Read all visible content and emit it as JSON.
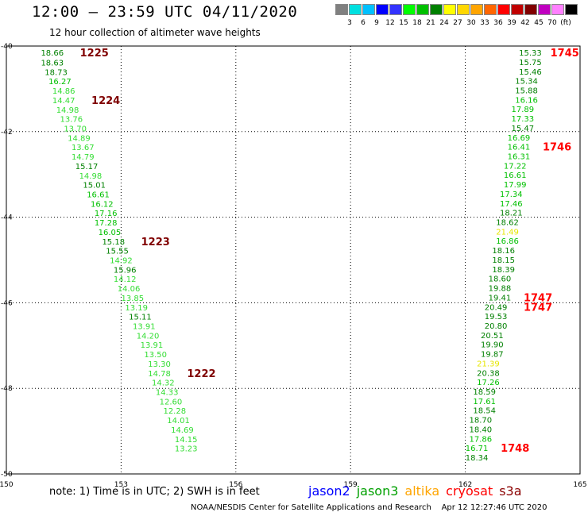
{
  "header": {
    "title": "12:00 – 23:59 UTC 04/11/2020",
    "subtitle": "12 hour collection of altimeter wave heights"
  },
  "colorbar": {
    "colors": [
      "#808080",
      "#00e0e0",
      "#00c0ff",
      "#0000ff",
      "#3333ff",
      "#00ff00",
      "#00c000",
      "#008000",
      "#ffff00",
      "#ffd700",
      "#ffa500",
      "#ff6600",
      "#ff0000",
      "#c00000",
      "#800000",
      "#c000c0",
      "#ff80ff",
      "#000000"
    ],
    "labels": [
      "3",
      "6",
      "9",
      "12",
      "15",
      "18",
      "21",
      "24",
      "27",
      "30",
      "33",
      "36",
      "39",
      "42",
      "45",
      "70",
      "(ft)"
    ]
  },
  "chart_data": {
    "type": "scatter",
    "x_ticks": [
      "150",
      "153",
      "156",
      "159",
      "162",
      "165"
    ],
    "y_ticks": [
      "-40",
      "-42",
      "-44",
      "-46",
      "-48",
      "-50"
    ],
    "xlim": [
      150,
      165
    ],
    "ylim": [
      -50,
      -40
    ],
    "grid": true,
    "tracks": [
      {
        "satellite": "jason3",
        "points": [
          {
            "lon": 151.2,
            "lat": -40.15,
            "value": "18.66",
            "color": "#008000"
          },
          {
            "lon": 151.2,
            "lat": -40.38,
            "value": "18.63",
            "color": "#008000"
          },
          {
            "lon": 151.3,
            "lat": -40.6,
            "value": "18.73",
            "color": "#008000"
          },
          {
            "lon": 151.4,
            "lat": -40.82,
            "value": "16.27",
            "color": "#00c000"
          },
          {
            "lon": 151.5,
            "lat": -41.04,
            "value": "14.86",
            "color": "#33dd33"
          },
          {
            "lon": 151.5,
            "lat": -41.26,
            "value": "14.47",
            "color": "#33dd33"
          },
          {
            "lon": 151.6,
            "lat": -41.48,
            "value": "14.98",
            "color": "#33dd33"
          },
          {
            "lon": 151.7,
            "lat": -41.7,
            "value": "13.76",
            "color": "#33dd33"
          },
          {
            "lon": 151.8,
            "lat": -41.92,
            "value": "13.70",
            "color": "#33dd33"
          },
          {
            "lon": 151.9,
            "lat": -42.14,
            "value": "14.89",
            "color": "#33dd33"
          },
          {
            "lon": 152.0,
            "lat": -42.36,
            "value": "13.67",
            "color": "#33dd33"
          },
          {
            "lon": 152.0,
            "lat": -42.58,
            "value": "14.79",
            "color": "#33dd33"
          },
          {
            "lon": 152.1,
            "lat": -42.8,
            "value": "15.17",
            "color": "#008000"
          },
          {
            "lon": 152.2,
            "lat": -43.02,
            "value": "14.98",
            "color": "#33dd33"
          },
          {
            "lon": 152.3,
            "lat": -43.24,
            "value": "15.01",
            "color": "#008000"
          },
          {
            "lon": 152.4,
            "lat": -43.46,
            "value": "16.61",
            "color": "#00c000"
          },
          {
            "lon": 152.5,
            "lat": -43.68,
            "value": "16.12",
            "color": "#00c000"
          },
          {
            "lon": 152.6,
            "lat": -43.9,
            "value": "17.16",
            "color": "#00c000"
          },
          {
            "lon": 152.6,
            "lat": -44.12,
            "value": "17.28",
            "color": "#00c000"
          },
          {
            "lon": 152.7,
            "lat": -44.34,
            "value": "16.05",
            "color": "#00c000"
          },
          {
            "lon": 152.8,
            "lat": -44.56,
            "value": "15.18",
            "color": "#008000"
          },
          {
            "lon": 152.9,
            "lat": -44.78,
            "value": "15.55",
            "color": "#008000"
          },
          {
            "lon": 153.0,
            "lat": -45.0,
            "value": "14.92",
            "color": "#33dd33"
          },
          {
            "lon": 153.1,
            "lat": -45.22,
            "value": "15.96",
            "color": "#008000"
          },
          {
            "lon": 153.1,
            "lat": -45.44,
            "value": "14.12",
            "color": "#33dd33"
          },
          {
            "lon": 153.2,
            "lat": -45.66,
            "value": "14.06",
            "color": "#33dd33"
          },
          {
            "lon": 153.3,
            "lat": -45.88,
            "value": "13.85",
            "color": "#33dd33"
          },
          {
            "lon": 153.4,
            "lat": -46.1,
            "value": "13.19",
            "color": "#33dd33"
          },
          {
            "lon": 153.5,
            "lat": -46.32,
            "value": "15.11",
            "color": "#008000"
          },
          {
            "lon": 153.6,
            "lat": -46.54,
            "value": "13.91",
            "color": "#33dd33"
          },
          {
            "lon": 153.7,
            "lat": -46.76,
            "value": "14.20",
            "color": "#33dd33"
          },
          {
            "lon": 153.8,
            "lat": -46.98,
            "value": "13.91",
            "color": "#33dd33"
          },
          {
            "lon": 153.9,
            "lat": -47.2,
            "value": "13.50",
            "color": "#33dd33"
          },
          {
            "lon": 154.0,
            "lat": -47.42,
            "value": "13.30",
            "color": "#33dd33"
          },
          {
            "lon": 154.0,
            "lat": -47.64,
            "value": "14.78",
            "color": "#33dd33"
          },
          {
            "lon": 154.1,
            "lat": -47.86,
            "value": "14.32",
            "color": "#33dd33"
          },
          {
            "lon": 154.2,
            "lat": -48.08,
            "value": "14.33",
            "color": "#33dd33"
          },
          {
            "lon": 154.3,
            "lat": -48.3,
            "value": "12.60",
            "color": "#33dd33"
          },
          {
            "lon": 154.4,
            "lat": -48.52,
            "value": "12.28",
            "color": "#33dd33"
          },
          {
            "lon": 154.5,
            "lat": -48.74,
            "value": "14.01",
            "color": "#33dd33"
          },
          {
            "lon": 154.6,
            "lat": -48.96,
            "value": "14.69",
            "color": "#33dd33"
          },
          {
            "lon": 154.7,
            "lat": -49.18,
            "value": "14.15",
            "color": "#33dd33"
          },
          {
            "lon": 154.7,
            "lat": -49.4,
            "value": "13.23",
            "color": "#33dd33"
          }
        ]
      },
      {
        "satellite": "jason3",
        "points": [
          {
            "lon": 163.7,
            "lat": -40.15,
            "value": "15.33",
            "color": "#008000"
          },
          {
            "lon": 163.7,
            "lat": -40.37,
            "value": "15.75",
            "color": "#008000"
          },
          {
            "lon": 163.7,
            "lat": -40.59,
            "value": "15.46",
            "color": "#008000"
          },
          {
            "lon": 163.6,
            "lat": -40.81,
            "value": "15.34",
            "color": "#008000"
          },
          {
            "lon": 163.6,
            "lat": -41.03,
            "value": "15.88",
            "color": "#008000"
          },
          {
            "lon": 163.6,
            "lat": -41.25,
            "value": "16.16",
            "color": "#00c000"
          },
          {
            "lon": 163.5,
            "lat": -41.47,
            "value": "17.89",
            "color": "#00c000"
          },
          {
            "lon": 163.5,
            "lat": -41.69,
            "value": "17.33",
            "color": "#00c000"
          },
          {
            "lon": 163.5,
            "lat": -41.91,
            "value": "15.47",
            "color": "#008000"
          },
          {
            "lon": 163.4,
            "lat": -42.13,
            "value": "16.69",
            "color": "#00c000"
          },
          {
            "lon": 163.4,
            "lat": -42.35,
            "value": "16.41",
            "color": "#00c000"
          },
          {
            "lon": 163.4,
            "lat": -42.57,
            "value": "16.31",
            "color": "#00c000"
          },
          {
            "lon": 163.3,
            "lat": -42.79,
            "value": "17.22",
            "color": "#00c000"
          },
          {
            "lon": 163.3,
            "lat": -43.01,
            "value": "16.61",
            "color": "#00c000"
          },
          {
            "lon": 163.3,
            "lat": -43.23,
            "value": "17.99",
            "color": "#00c000"
          },
          {
            "lon": 163.2,
            "lat": -43.45,
            "value": "17.34",
            "color": "#00c000"
          },
          {
            "lon": 163.2,
            "lat": -43.67,
            "value": "17.46",
            "color": "#00c000"
          },
          {
            "lon": 163.2,
            "lat": -43.89,
            "value": "18.21",
            "color": "#008000"
          },
          {
            "lon": 163.1,
            "lat": -44.11,
            "value": "18.62",
            "color": "#008000"
          },
          {
            "lon": 163.1,
            "lat": -44.33,
            "value": "21.49",
            "color": "#e6e600"
          },
          {
            "lon": 163.1,
            "lat": -44.55,
            "value": "16.86",
            "color": "#00c000"
          },
          {
            "lon": 163.0,
            "lat": -44.77,
            "value": "18.16",
            "color": "#008000"
          },
          {
            "lon": 163.0,
            "lat": -44.99,
            "value": "18.15",
            "color": "#008000"
          },
          {
            "lon": 163.0,
            "lat": -45.21,
            "value": "18.39",
            "color": "#008000"
          },
          {
            "lon": 162.9,
            "lat": -45.43,
            "value": "18.60",
            "color": "#008000"
          },
          {
            "lon": 162.9,
            "lat": -45.65,
            "value": "19.88",
            "color": "#008000"
          },
          {
            "lon": 162.9,
            "lat": -45.87,
            "value": "19.41",
            "color": "#008000"
          },
          {
            "lon": 162.8,
            "lat": -46.09,
            "value": "20.49",
            "color": "#008000"
          },
          {
            "lon": 162.8,
            "lat": -46.31,
            "value": "19.53",
            "color": "#008000"
          },
          {
            "lon": 162.8,
            "lat": -46.53,
            "value": "20.80",
            "color": "#008000"
          },
          {
            "lon": 162.7,
            "lat": -46.75,
            "value": "20.51",
            "color": "#008000"
          },
          {
            "lon": 162.7,
            "lat": -46.97,
            "value": "19.90",
            "color": "#008000"
          },
          {
            "lon": 162.7,
            "lat": -47.19,
            "value": "19.87",
            "color": "#008000"
          },
          {
            "lon": 162.6,
            "lat": -47.41,
            "value": "21.39",
            "color": "#e6e600"
          },
          {
            "lon": 162.6,
            "lat": -47.63,
            "value": "20.38",
            "color": "#008000"
          },
          {
            "lon": 162.6,
            "lat": -47.85,
            "value": "17.26",
            "color": "#00c000"
          },
          {
            "lon": 162.5,
            "lat": -48.07,
            "value": "18.59",
            "color": "#008000"
          },
          {
            "lon": 162.5,
            "lat": -48.29,
            "value": "17.61",
            "color": "#00c000"
          },
          {
            "lon": 162.5,
            "lat": -48.51,
            "value": "18.54",
            "color": "#008000"
          },
          {
            "lon": 162.4,
            "lat": -48.73,
            "value": "18.70",
            "color": "#008000"
          },
          {
            "lon": 162.4,
            "lat": -48.95,
            "value": "18.40",
            "color": "#008000"
          },
          {
            "lon": 162.4,
            "lat": -49.17,
            "value": "17.86",
            "color": "#00c000"
          },
          {
            "lon": 162.3,
            "lat": -49.39,
            "value": "16.71",
            "color": "#00c000"
          },
          {
            "lon": 162.3,
            "lat": -49.61,
            "value": "18.34",
            "color": "#008000"
          }
        ]
      }
    ],
    "time_labels": [
      {
        "text": "1225",
        "lon": 152.3,
        "lat": -40.15,
        "color": "#800000"
      },
      {
        "text": "1224",
        "lon": 152.6,
        "lat": -41.26,
        "color": "#800000"
      },
      {
        "text": "1223",
        "lon": 153.9,
        "lat": -44.56,
        "color": "#800000"
      },
      {
        "text": "1222",
        "lon": 155.1,
        "lat": -47.64,
        "color": "#800000"
      },
      {
        "text": "1745",
        "lon": 164.6,
        "lat": -40.15,
        "color": "#ff0000"
      },
      {
        "text": "1746",
        "lon": 164.4,
        "lat": -42.35,
        "color": "#ff0000"
      },
      {
        "text": "1747",
        "lon": 163.9,
        "lat": -45.87,
        "color": "#ff0000"
      },
      {
        "text": "1747",
        "lon": 163.9,
        "lat": -46.09,
        "color": "#ff0000"
      },
      {
        "text": "1748",
        "lon": 163.3,
        "lat": -49.39,
        "color": "#ff0000"
      }
    ]
  },
  "footer": {
    "note": "note: 1) Time is in UTC; 2) SWH is in feet",
    "legend": [
      {
        "name": "jason2",
        "color": "#0000ff"
      },
      {
        "name": "jason3",
        "color": "#00a000"
      },
      {
        "name": "altika",
        "color": "#ffa500"
      },
      {
        "name": "cryosat",
        "color": "#ff0000"
      },
      {
        "name": "s3a",
        "color": "#8b0000"
      }
    ],
    "credit": "NOAA/NESDIS Center for Satellite Applications and Research    Apr 12 12:27:46 UTC 2020"
  }
}
